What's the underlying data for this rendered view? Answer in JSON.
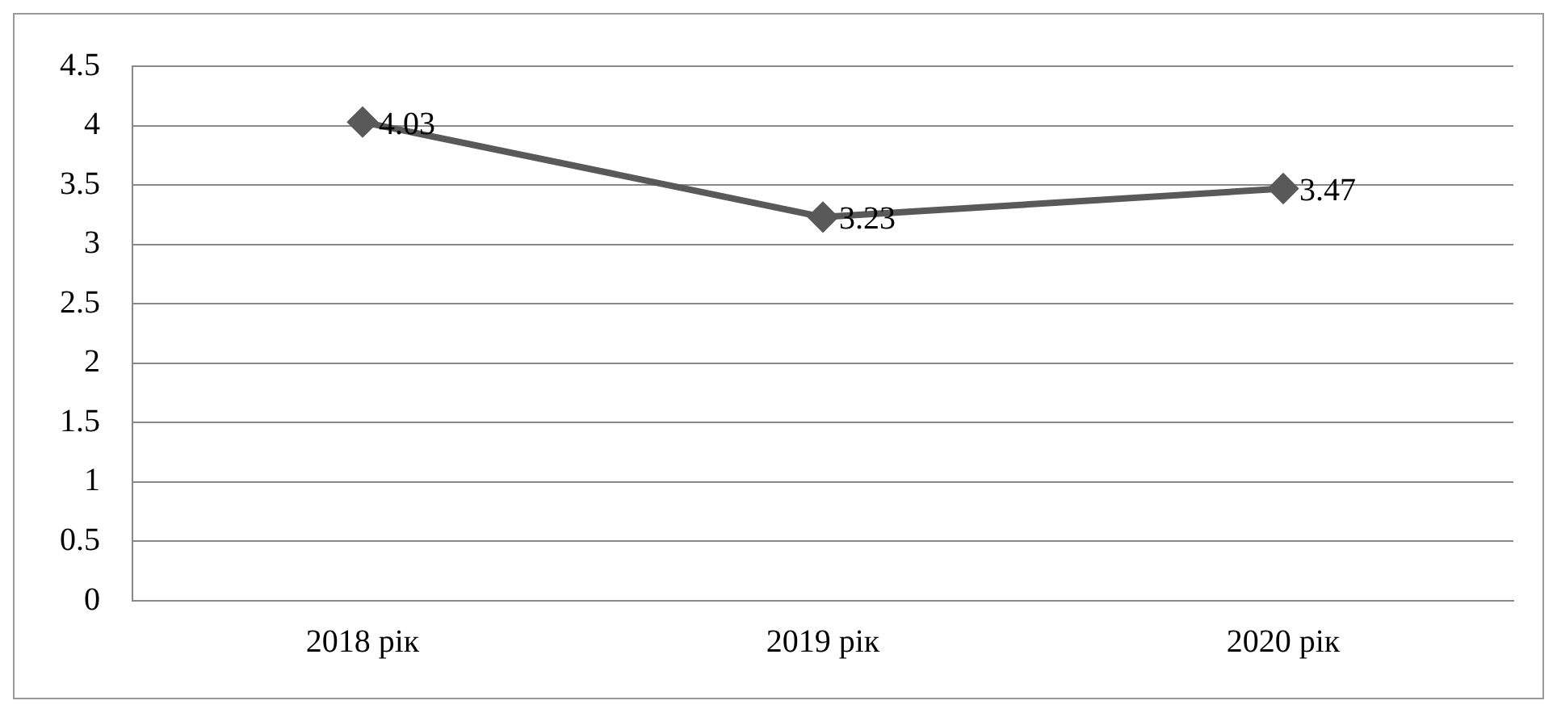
{
  "chart_data": {
    "type": "line",
    "categories": [
      "2018 рік",
      "2019 рік",
      "2020 рік"
    ],
    "series": [
      {
        "color": "#595959",
        "values": [
          4.03,
          3.23,
          3.47
        ]
      }
    ],
    "ylim": [
      0,
      4.5
    ],
    "yticks": [
      0,
      0.5,
      1,
      1.5,
      2,
      2.5,
      3,
      3.5,
      4,
      4.5
    ],
    "grid": "y",
    "legend": false,
    "marker": "diamond",
    "line_style": "solid",
    "data_labels": true
  }
}
